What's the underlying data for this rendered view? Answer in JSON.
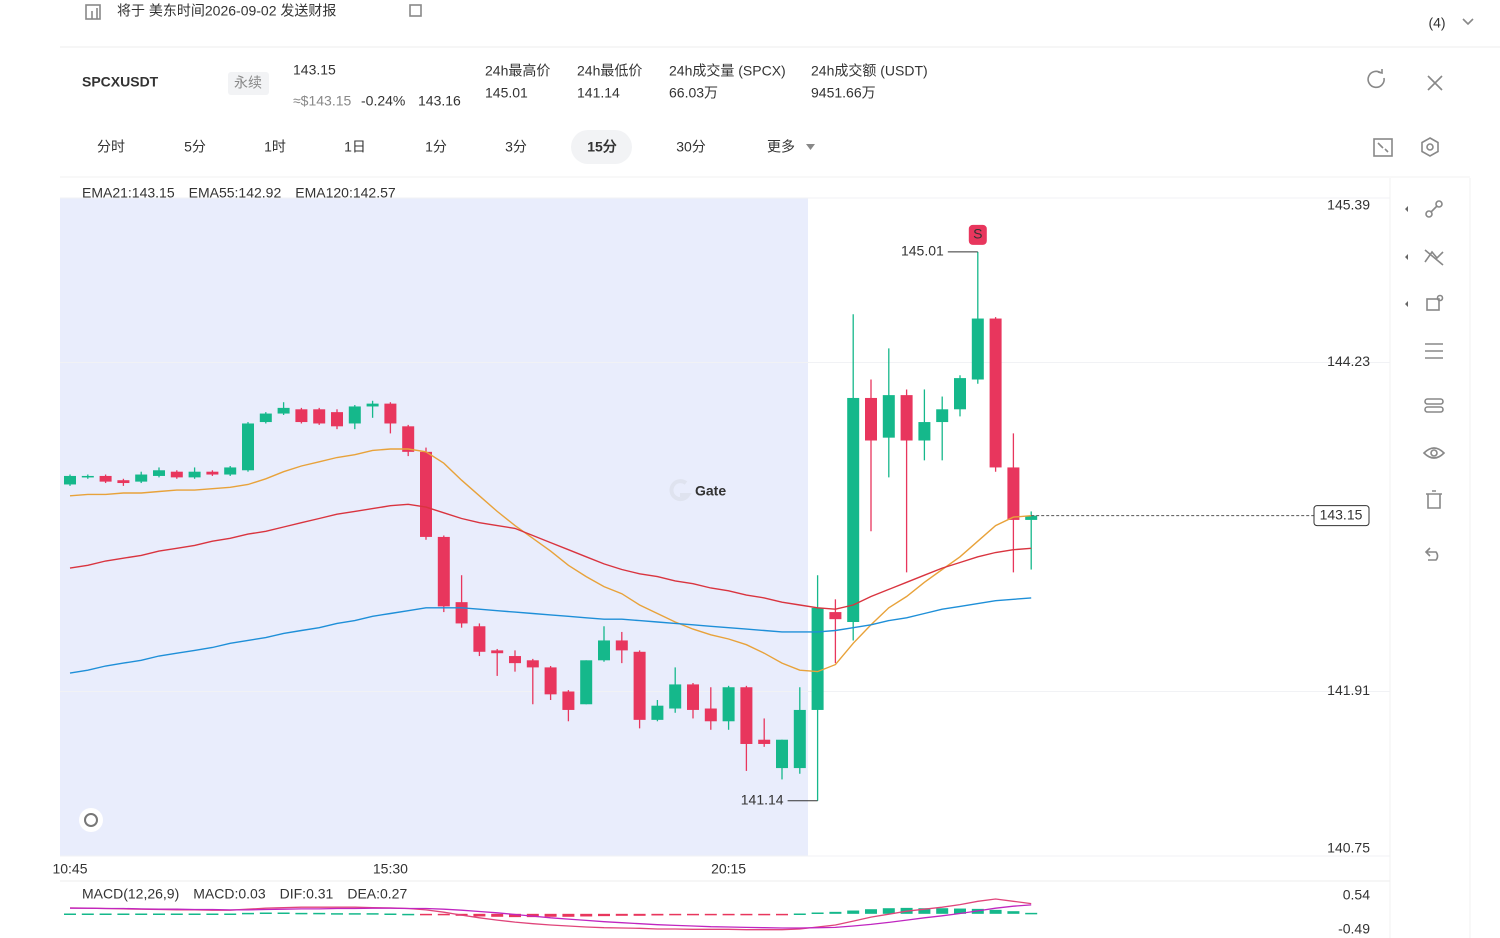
{
  "header": {
    "notice": "将于 美东时间2026-09-02 发送财报",
    "count": "(4)",
    "symbol": "SPCXUSDT",
    "contract": "永续",
    "price": "143.15",
    "usd_price": "≈$143.15",
    "change": "-0.24%",
    "mark_price": "143.16",
    "stats": [
      {
        "label": "24h最高价",
        "value": "145.01"
      },
      {
        "label": "24h最低价",
        "value": "141.14"
      },
      {
        "label": "24h成交量 (SPCX)",
        "value": "66.03万"
      },
      {
        "label": "24h成交额 (USDT)",
        "value": "9451.66万"
      }
    ],
    "tabs": [
      "分时",
      "5分",
      "1时",
      "1日",
      "1分",
      "3分",
      "15分",
      "30分",
      "更多"
    ],
    "active_tab": 6
  },
  "chart_data": [
    {
      "type": "candlestick",
      "watermark": "Gate",
      "signal": "S",
      "up_color": "#15b88b",
      "down_color": "#e8365d",
      "grid": true,
      "ylim": [
        140.75,
        145.39
      ],
      "yticks": [
        145.39,
        144.23,
        141.91,
        140.75
      ],
      "categories": [
        "10:45",
        null,
        null,
        null,
        null,
        null,
        null,
        null,
        null,
        null,
        null,
        null,
        null,
        null,
        null,
        null,
        null,
        null,
        "15:30",
        null,
        null,
        null,
        null,
        null,
        null,
        null,
        null,
        null,
        null,
        null,
        null,
        null,
        null,
        null,
        null,
        null,
        null,
        "20:15",
        null,
        null,
        null,
        null,
        null,
        null,
        null,
        null,
        null,
        null,
        null,
        null,
        null,
        null,
        null,
        null,
        null
      ],
      "open": [
        143.37,
        143.42,
        143.43,
        143.4,
        143.39,
        143.43,
        143.46,
        143.42,
        143.46,
        143.44,
        143.47,
        143.81,
        143.87,
        143.9,
        143.9,
        143.88,
        143.8,
        143.92,
        143.94,
        143.78,
        143.6,
        143.0,
        142.54,
        142.37,
        142.2,
        142.16,
        142.13,
        142.08,
        141.91,
        141.82,
        142.13,
        142.27,
        142.19,
        141.71,
        141.79,
        141.96,
        141.79,
        141.7,
        141.94,
        141.57,
        141.37,
        141.37,
        141.78,
        142.47,
        142.4,
        143.98,
        143.7,
        144.0,
        143.68,
        143.81,
        143.9,
        144.11,
        144.54,
        143.49,
        143.12
      ],
      "high": [
        143.44,
        143.44,
        143.44,
        143.41,
        143.46,
        143.49,
        143.47,
        143.49,
        143.47,
        143.5,
        143.81,
        143.88,
        143.95,
        143.91,
        143.91,
        143.9,
        143.93,
        143.96,
        143.95,
        143.79,
        143.63,
        143.01,
        142.73,
        142.39,
        142.21,
        142.2,
        142.14,
        142.09,
        141.92,
        142.13,
        142.37,
        142.33,
        142.2,
        141.85,
        142.08,
        141.97,
        141.94,
        141.95,
        141.95,
        141.72,
        141.57,
        141.94,
        142.73,
        142.56,
        144.57,
        144.11,
        144.33,
        144.04,
        144.04,
        143.99,
        144.14,
        145.01,
        144.55,
        143.73,
        143.18
      ],
      "low": [
        143.36,
        143.41,
        143.38,
        143.36,
        143.38,
        143.42,
        143.41,
        143.41,
        143.43,
        143.43,
        143.46,
        143.8,
        143.86,
        143.8,
        143.79,
        143.76,
        143.76,
        143.84,
        143.73,
        143.57,
        142.98,
        142.47,
        142.36,
        142.16,
        142.02,
        142.05,
        141.82,
        141.85,
        141.7,
        141.82,
        142.12,
        142.11,
        141.65,
        141.7,
        141.76,
        141.72,
        141.64,
        141.64,
        141.35,
        141.52,
        141.29,
        141.33,
        141.14,
        142.11,
        142.27,
        143.04,
        143.42,
        142.75,
        143.54,
        143.54,
        143.85,
        144.08,
        143.46,
        142.75,
        142.77
      ],
      "close": [
        143.43,
        143.43,
        143.39,
        143.38,
        143.44,
        143.47,
        143.42,
        143.46,
        143.44,
        143.49,
        143.8,
        143.87,
        143.91,
        143.81,
        143.8,
        143.78,
        143.92,
        143.94,
        143.8,
        143.6,
        143.0,
        142.51,
        142.39,
        142.19,
        142.18,
        142.11,
        142.08,
        141.89,
        141.78,
        142.13,
        142.27,
        142.2,
        141.71,
        141.81,
        141.96,
        141.78,
        141.7,
        141.94,
        141.54,
        141.54,
        141.57,
        141.78,
        142.5,
        142.42,
        143.98,
        143.68,
        144.0,
        143.68,
        143.81,
        143.9,
        144.12,
        144.54,
        143.49,
        143.12,
        143.15
      ],
      "series": [
        {
          "name": "EMA21:143.15",
          "color": "#e8a23a",
          "values": [
            143.29,
            143.3,
            143.3,
            143.31,
            143.31,
            143.32,
            143.33,
            143.33,
            143.34,
            143.35,
            143.37,
            143.41,
            143.46,
            143.5,
            143.53,
            143.56,
            143.58,
            143.61,
            143.62,
            143.62,
            143.6,
            143.52,
            143.4,
            143.29,
            143.18,
            143.08,
            142.99,
            142.9,
            142.8,
            142.72,
            142.65,
            142.6,
            142.52,
            142.46,
            142.4,
            142.35,
            142.31,
            142.28,
            142.24,
            142.18,
            142.11,
            142.06,
            142.05,
            142.1,
            142.25,
            142.38,
            142.5,
            142.58,
            142.68,
            142.77,
            142.86,
            142.97,
            143.08,
            143.14,
            143.15
          ]
        },
        {
          "name": "EMA55:142.92",
          "color": "#d9343f",
          "values": [
            142.78,
            142.8,
            142.83,
            142.85,
            142.87,
            142.9,
            142.92,
            142.94,
            142.97,
            142.99,
            143.02,
            143.04,
            143.07,
            143.1,
            143.13,
            143.16,
            143.18,
            143.2,
            143.22,
            143.23,
            143.21,
            143.17,
            143.13,
            143.1,
            143.08,
            143.06,
            143.01,
            142.96,
            142.91,
            142.86,
            142.81,
            142.77,
            142.74,
            142.72,
            142.69,
            142.67,
            142.64,
            142.62,
            142.59,
            142.57,
            142.54,
            142.52,
            142.5,
            142.49,
            142.52,
            142.58,
            142.63,
            142.68,
            142.73,
            142.78,
            142.82,
            142.86,
            142.89,
            142.91,
            142.92
          ]
        },
        {
          "name": "EMA120:142.57",
          "color": "#1e8fd8",
          "values": [
            142.04,
            142.06,
            142.09,
            142.11,
            142.13,
            142.16,
            142.18,
            142.2,
            142.22,
            142.25,
            142.27,
            142.29,
            142.32,
            142.34,
            142.36,
            142.39,
            142.41,
            142.44,
            142.46,
            142.48,
            142.5,
            142.5,
            142.5,
            142.49,
            142.48,
            142.47,
            142.46,
            142.45,
            142.44,
            142.43,
            142.42,
            142.42,
            142.41,
            142.4,
            142.39,
            142.38,
            142.37,
            142.36,
            142.35,
            142.34,
            142.33,
            142.33,
            142.33,
            142.34,
            142.36,
            142.38,
            142.41,
            142.43,
            142.46,
            142.49,
            142.51,
            142.53,
            142.55,
            142.56,
            142.57
          ]
        }
      ]
    },
    {
      "type": "macd",
      "title": "MACD(12,26,9)",
      "up_color": "#15b88b",
      "down_color": "#e8365d",
      "ylim": [
        -0.49,
        0.54
      ],
      "yticks": [
        0.54,
        -0.49
      ],
      "series": [
        {
          "name": "MACD:0.03",
          "color": "#e8a23a",
          "kind": "histogram",
          "values": [
            0.01,
            0.01,
            0.01,
            0.01,
            0.01,
            0.01,
            0.01,
            0.01,
            0.01,
            0.01,
            0.03,
            0.04,
            0.04,
            0.03,
            0.03,
            0.02,
            0.02,
            0.02,
            0.01,
            0,
            -0.02,
            -0.04,
            -0.06,
            -0.08,
            -0.09,
            -0.1,
            -0.1,
            -0.09,
            -0.09,
            -0.08,
            -0.07,
            -0.06,
            -0.06,
            -0.05,
            -0.04,
            -0.03,
            -0.03,
            -0.02,
            -0.02,
            -0.01,
            -0.01,
            0.01,
            0.04,
            0.06,
            0.1,
            0.14,
            0.17,
            0.18,
            0.17,
            0.17,
            0.16,
            0.15,
            0.12,
            0.08,
            0.03
          ]
        },
        {
          "name": "DIF:0.31",
          "color": "#e0457b",
          "kind": "line",
          "values": [
            0.18,
            0.17,
            0.16,
            0.15,
            0.14,
            0.13,
            0.12,
            0.12,
            0.11,
            0.11,
            0.14,
            0.17,
            0.19,
            0.2,
            0.2,
            0.2,
            0.2,
            0.19,
            0.18,
            0.16,
            0.12,
            0.05,
            -0.04,
            -0.12,
            -0.19,
            -0.25,
            -0.3,
            -0.34,
            -0.37,
            -0.4,
            -0.42,
            -0.43,
            -0.44,
            -0.46,
            -0.46,
            -0.47,
            -0.47,
            -0.47,
            -0.48,
            -0.48,
            -0.48,
            -0.46,
            -0.4,
            -0.34,
            -0.22,
            -0.1,
            -0.01,
            0.08,
            0.14,
            0.2,
            0.28,
            0.38,
            0.45,
            0.38,
            0.31
          ]
        },
        {
          "name": "DEA:0.27",
          "color": "#c026c0",
          "kind": "line",
          "values": [
            0.17,
            0.17,
            0.16,
            0.16,
            0.15,
            0.14,
            0.14,
            0.13,
            0.13,
            0.12,
            0.12,
            0.13,
            0.14,
            0.15,
            0.15,
            0.16,
            0.16,
            0.17,
            0.17,
            0.16,
            0.16,
            0.14,
            0.11,
            0.07,
            0.03,
            -0.02,
            -0.07,
            -0.12,
            -0.16,
            -0.2,
            -0.24,
            -0.27,
            -0.3,
            -0.33,
            -0.35,
            -0.37,
            -0.39,
            -0.4,
            -0.41,
            -0.42,
            -0.43,
            -0.43,
            -0.42,
            -0.41,
            -0.37,
            -0.32,
            -0.26,
            -0.19,
            -0.12,
            -0.06,
            0.01,
            0.09,
            0.17,
            0.23,
            0.27
          ]
        }
      ]
    }
  ]
}
